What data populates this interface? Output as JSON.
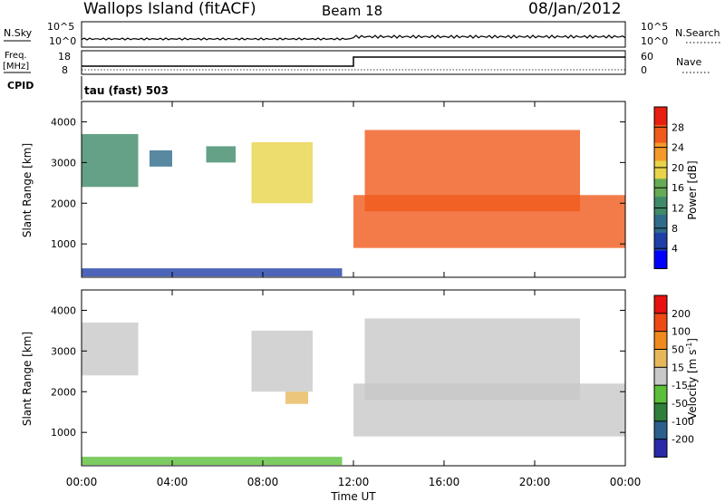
{
  "header": {
    "title": "Wallops Island (fitACF)",
    "beam": "Beam 18",
    "date": "08/Jan/2012"
  },
  "top_panel": {
    "nsky_label": "N.Sky",
    "nsky_ticks": [
      "10^5",
      "10^0"
    ],
    "nsearch_label": "N.Search",
    "nsearch_ticks": [
      "10^5",
      "10^0"
    ],
    "freq_label": "Freq.",
    "freq_unit": "[MHz]",
    "freq_ticks": [
      "18",
      "8"
    ],
    "nave_label": "Nave",
    "nave_ticks": [
      "60",
      "0"
    ],
    "cpid_label": "CPID",
    "cpid_value": "tau (fast) 503"
  },
  "colors": {
    "power_scale": [
      "#0000ff",
      "#1f3fa8",
      "#2f6c8a",
      "#3f8a68",
      "#66aa55",
      "#e8d34a",
      "#f39a2a",
      "#f05a1c",
      "#e81e10"
    ],
    "velocity_scale": [
      "#2a2aa8",
      "#2c5f8c",
      "#2f7f3a",
      "#5bbf3a",
      "#c8c8c8",
      "#e7b85a",
      "#f08a1e",
      "#f04a14",
      "#e81010"
    ]
  },
  "chart_data": [
    {
      "type": "heatmap",
      "name": "Power",
      "ylabel": "Slant Range [km]",
      "xlabel": "Time UT",
      "x_ticks": [
        "00:00",
        "04:00",
        "08:00",
        "12:00",
        "16:00",
        "20:00",
        "00:00"
      ],
      "y_ticks": [
        1000,
        2000,
        3000,
        4000
      ],
      "xlim": [
        0,
        24
      ],
      "ylim": [
        180,
        4500
      ],
      "colorbar": {
        "label": "Power [dB]",
        "ticks": [
          4,
          8,
          12,
          16,
          20,
          24,
          28
        ],
        "range": [
          0,
          32
        ]
      },
      "features": [
        {
          "x": [
            0.0,
            2.5
          ],
          "y": [
            2400,
            3700
          ],
          "level": 14
        },
        {
          "x": [
            3.0,
            4.0
          ],
          "y": [
            2900,
            3300
          ],
          "level": 10
        },
        {
          "x": [
            5.5,
            6.8
          ],
          "y": [
            3000,
            3400
          ],
          "level": 12
        },
        {
          "x": [
            7.5,
            10.2
          ],
          "y": [
            2000,
            3500
          ],
          "level": 20
        },
        {
          "x": [
            12.5,
            22.0
          ],
          "y": [
            1800,
            3800
          ],
          "level": 28
        },
        {
          "x": [
            12.0,
            24.0
          ],
          "y": [
            900,
            2200
          ],
          "level": 28
        },
        {
          "x": [
            0.0,
            11.5
          ],
          "y": [
            200,
            400
          ],
          "level": 6
        }
      ]
    },
    {
      "type": "heatmap",
      "name": "Velocity",
      "ylabel": "Slant Range [km]",
      "xlabel": "Time UT",
      "x_ticks": [
        "00:00",
        "04:00",
        "08:00",
        "12:00",
        "16:00",
        "20:00",
        "00:00"
      ],
      "y_ticks": [
        1000,
        2000,
        3000,
        4000
      ],
      "xlim": [
        0,
        24
      ],
      "ylim": [
        180,
        4500
      ],
      "colorbar": {
        "label": "Velocity [m s-1]",
        "ticks": [
          200,
          100,
          50,
          15,
          -15,
          -50,
          -100,
          -200
        ],
        "range": [
          -250,
          250
        ]
      },
      "features": [
        {
          "x": [
            0.0,
            2.5
          ],
          "y": [
            2400,
            3700
          ],
          "level": 0
        },
        {
          "x": [
            7.5,
            10.2
          ],
          "y": [
            2000,
            3500
          ],
          "level": 0
        },
        {
          "x": [
            9.0,
            10.0
          ],
          "y": [
            1700,
            2000
          ],
          "level": 60
        },
        {
          "x": [
            12.5,
            22.0
          ],
          "y": [
            1800,
            3800
          ],
          "level": 0
        },
        {
          "x": [
            12.0,
            24.0
          ],
          "y": [
            900,
            2200
          ],
          "level": 0
        },
        {
          "x": [
            0.0,
            11.5
          ],
          "y": [
            200,
            400
          ],
          "level": -30
        }
      ]
    }
  ]
}
